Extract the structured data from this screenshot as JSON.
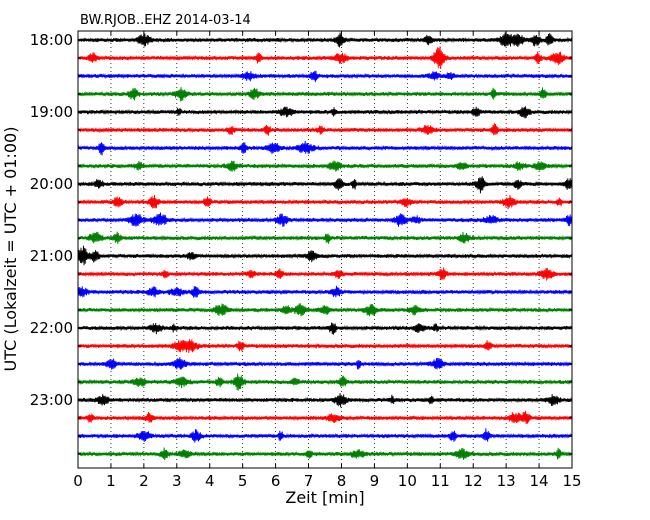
{
  "chart_data": {
    "type": "line",
    "title": "BW.RJOB..EHZ 2014-03-14",
    "xlabel": "Zeit  [min]",
    "ylabel": "UTC (Lokalzeit = UTC + 01:00)",
    "xlim": [
      0,
      15
    ],
    "x_ticks": [
      "0",
      "1",
      "2",
      "3",
      "4",
      "5",
      "6",
      "7",
      "8",
      "9",
      "10",
      "11",
      "12",
      "13",
      "14",
      "15"
    ],
    "y_ticks": [
      "18:00",
      "19:00",
      "20:00",
      "21:00",
      "22:00",
      "23:00"
    ],
    "trace_interval_minutes": 15,
    "traces_per_hour": 4,
    "series_colors": [
      "#000000",
      "#ff0000",
      "#0000ff",
      "#008000"
    ],
    "grid": "vertical dotted at each minute",
    "rows": [
      {
        "start": "18:00",
        "color": "#000000"
      },
      {
        "start": "18:15",
        "color": "#ff0000"
      },
      {
        "start": "18:30",
        "color": "#0000ff"
      },
      {
        "start": "18:45",
        "color": "#008000"
      },
      {
        "start": "19:00",
        "color": "#000000"
      },
      {
        "start": "19:15",
        "color": "#ff0000"
      },
      {
        "start": "19:30",
        "color": "#0000ff"
      },
      {
        "start": "19:45",
        "color": "#008000"
      },
      {
        "start": "20:00",
        "color": "#000000"
      },
      {
        "start": "20:15",
        "color": "#ff0000"
      },
      {
        "start": "20:30",
        "color": "#0000ff"
      },
      {
        "start": "20:45",
        "color": "#008000"
      },
      {
        "start": "21:00",
        "color": "#000000"
      },
      {
        "start": "21:15",
        "color": "#ff0000"
      },
      {
        "start": "21:30",
        "color": "#0000ff"
      },
      {
        "start": "21:45",
        "color": "#008000"
      },
      {
        "start": "22:00",
        "color": "#000000"
      },
      {
        "start": "22:15",
        "color": "#ff0000"
      },
      {
        "start": "22:30",
        "color": "#0000ff"
      },
      {
        "start": "22:45",
        "color": "#008000"
      },
      {
        "start": "23:00",
        "color": "#000000"
      },
      {
        "start": "23:15",
        "color": "#ff0000"
      },
      {
        "start": "23:30",
        "color": "#0000ff"
      },
      {
        "start": "23:45",
        "color": "#008000"
      }
    ]
  }
}
